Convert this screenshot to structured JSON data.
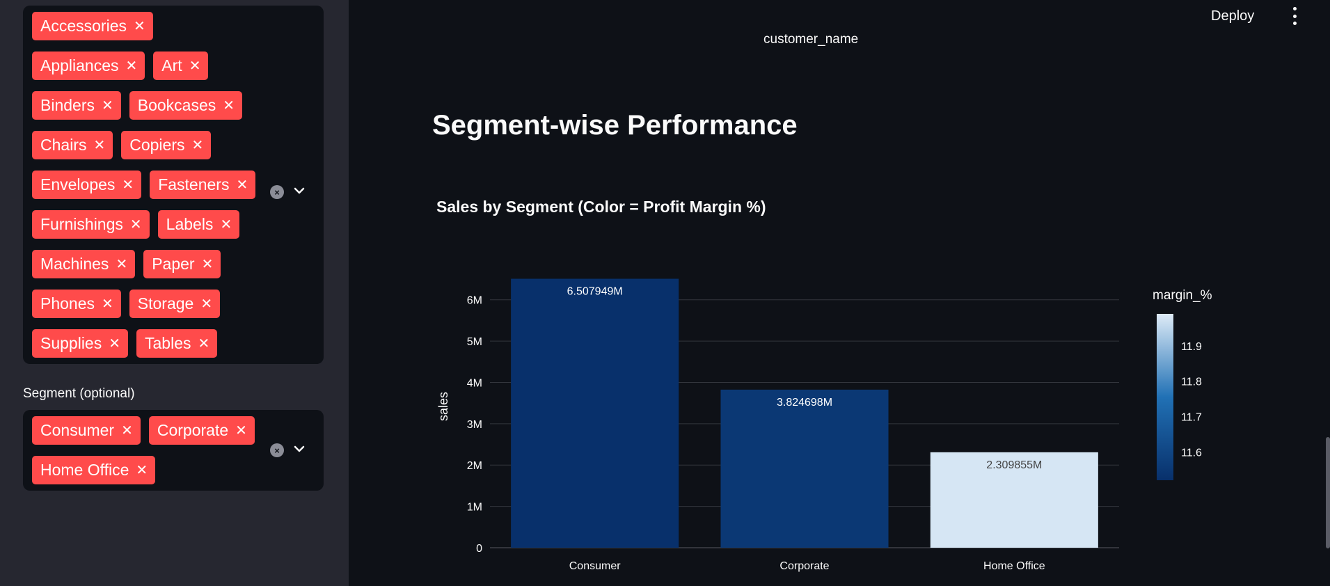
{
  "sidebar": {
    "sub_category_tags": [
      "Accessories",
      "Appliances",
      "Art",
      "Binders",
      "Bookcases",
      "Chairs",
      "Copiers",
      "Envelopes",
      "Fasteners",
      "Furnishings",
      "Labels",
      "Machines",
      "Paper",
      "Phones",
      "Storage",
      "Supplies",
      "Tables"
    ],
    "segment_label": "Segment (optional)",
    "segment_tags": [
      "Consumer",
      "Corporate",
      "Home Office"
    ],
    "tag_remove_glyph": "✕"
  },
  "header": {
    "deploy_label": "Deploy"
  },
  "main": {
    "cut_off_axis_label": "customer_name",
    "section_heading": "Segment-wise Performance",
    "chart_title": "Sales by Segment (Color = Profit Margin %)"
  },
  "chart_data": {
    "type": "bar",
    "categories": [
      "Consumer",
      "Corporate",
      "Home Office"
    ],
    "values": [
      6507949,
      3824698,
      2309855
    ],
    "data_labels": [
      "6.507949M",
      "3.824698M",
      "2.309855M"
    ],
    "margin_values": [
      11.52,
      11.55,
      11.98
    ],
    "ylabel": "sales",
    "xlabel": "",
    "ylim": [
      0,
      6500000
    ],
    "y_ticks": [
      0,
      1000000,
      2000000,
      3000000,
      4000000,
      5000000,
      6000000
    ],
    "y_tick_labels": [
      "0",
      "1M",
      "2M",
      "3M",
      "4M",
      "5M",
      "6M"
    ],
    "colorbar": {
      "title": "margin_%",
      "range": [
        11.52,
        11.99
      ],
      "ticks": [
        11.6,
        11.7,
        11.8,
        11.9
      ],
      "tick_labels": [
        "11.6",
        "11.7",
        "11.8",
        "11.9"
      ],
      "color_low": "#08306b",
      "color_mid": "#2171b5",
      "color_high": "#deebf7"
    },
    "grid": true
  },
  "colors": {
    "tag_bg": "#ff4b4b",
    "page_bg": "#0e1117",
    "sidebar_bg": "#262730"
  }
}
